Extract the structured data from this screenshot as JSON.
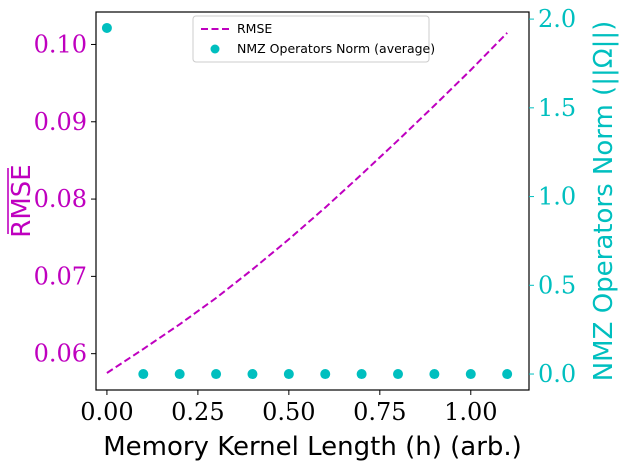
{
  "chart_data": {
    "type": "line+scatter",
    "xlabel": "Memory Kernel Length (h) (arb.)",
    "ylabel_left": "RMSE",
    "ylabel_right": "NMZ Operators Norm (||Ω||)",
    "xlim": [
      -0.03,
      1.16
    ],
    "ylim_left": [
      0.0553,
      0.1042
    ],
    "ylim_right": [
      -0.09,
      2.04
    ],
    "x_ticks": [
      0.0,
      0.25,
      0.5,
      0.75,
      1.0
    ],
    "x_tick_labels": [
      "0.00",
      "0.25",
      "0.50",
      "0.75",
      "1.00"
    ],
    "y_left_ticks": [
      0.06,
      0.07,
      0.08,
      0.09,
      0.1
    ],
    "y_left_tick_labels": [
      "0.06",
      "0.07",
      "0.08",
      "0.09",
      "0.10"
    ],
    "y_right_ticks": [
      0.0,
      0.5,
      1.0,
      1.5,
      2.0
    ],
    "y_right_tick_labels": [
      "0.0",
      "0.5",
      "1.0",
      "1.5",
      "2.0"
    ],
    "legend_position": "top-center",
    "grid": false,
    "colors": {
      "rmse": "#bf00bf",
      "norm": "#00bfbf",
      "axis": "#000000"
    },
    "series": [
      {
        "name": "RMSE",
        "axis": "left",
        "style": "dashed-line",
        "x": [
          0.0,
          0.1,
          0.2,
          0.3,
          0.4,
          0.5,
          0.6,
          0.7,
          0.8,
          0.9,
          1.0,
          1.1
        ],
        "values": [
          0.0575,
          0.0606,
          0.0638,
          0.0672,
          0.0709,
          0.0748,
          0.0789,
          0.0832,
          0.0876,
          0.0921,
          0.0967,
          0.1015
        ]
      },
      {
        "name": "NMZ Operators Norm (average)",
        "axis": "right",
        "style": "scatter",
        "x": [
          0.0,
          0.1,
          0.2,
          0.3,
          0.4,
          0.5,
          0.6,
          0.7,
          0.8,
          0.9,
          1.0,
          1.1
        ],
        "values": [
          1.95,
          0.0,
          0.0,
          0.0,
          0.0,
          0.0,
          0.0,
          0.0,
          0.0,
          0.0,
          0.0,
          0.0
        ]
      }
    ]
  }
}
